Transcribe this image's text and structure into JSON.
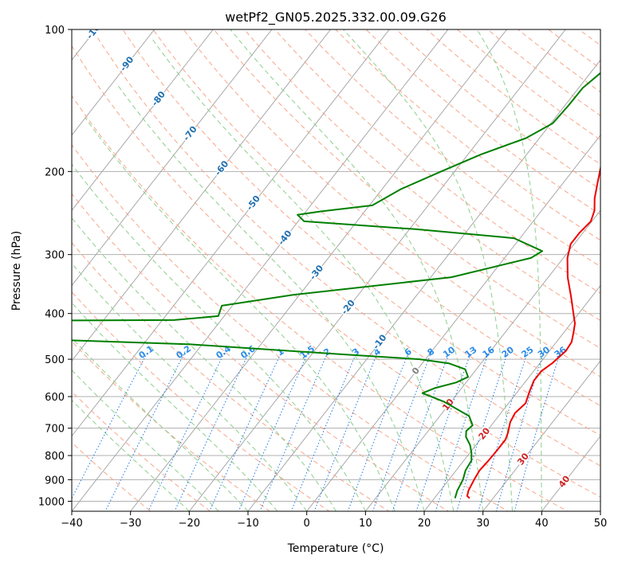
{
  "chart_data": {
    "type": "line",
    "subtype": "skew-t log-p",
    "title": "wetPf2_GN05.2025.332.00.09.G26",
    "xlabel": "Temperature (°C)",
    "ylabel": "Pressure (hPa)",
    "xlim": [
      -40,
      50
    ],
    "ylim": [
      1050,
      100
    ],
    "x_ticks": [
      -40,
      -30,
      -20,
      -10,
      0,
      10,
      20,
      30,
      40,
      50
    ],
    "y_ticks": [
      1000,
      900,
      800,
      700,
      600,
      500,
      400,
      300,
      200,
      100
    ],
    "x_tick_labels": [
      "−40",
      "−30",
      "−20",
      "−10",
      "0",
      "10",
      "20",
      "30",
      "40",
      "50"
    ],
    "y_tick_labels": [
      "1000",
      "900",
      "800",
      "700",
      "600",
      "500",
      "400",
      "300",
      "200",
      "100"
    ],
    "colors": {
      "temperature": "#ee0000",
      "dewpoint": "#007f00",
      "isotherm": "#a0a0a0",
      "dry_adiabat": "#f7a68a",
      "moist_adiabat": "#8ccf8c",
      "mixing_ratio": "#1f77e4",
      "grid": "#b0b0b0",
      "isotherm_label_neg": "#1f6fb0",
      "isotherm_label_pos": "#cc2222",
      "isotherm_label_zero": "#808080",
      "mixing_label": "#2b8ce8"
    },
    "series": [
      {
        "name": "Temperature",
        "points": [
          [
            26.0,
            985
          ],
          [
            25.3,
            975
          ],
          [
            24.8,
            950
          ],
          [
            24.3,
            900
          ],
          [
            24.0,
            860
          ],
          [
            24.2,
            820
          ],
          [
            24.3,
            780
          ],
          [
            24.3,
            740
          ],
          [
            23.8,
            715
          ],
          [
            22.8,
            680
          ],
          [
            22.4,
            650
          ],
          [
            22.9,
            620
          ],
          [
            22.0,
            585
          ],
          [
            21.3,
            555
          ],
          [
            21.3,
            530
          ],
          [
            22.1,
            510
          ],
          [
            22.8,
            480
          ],
          [
            22.6,
            460
          ],
          [
            21.7,
            440
          ],
          [
            20.7,
            420
          ],
          [
            19.1,
            400
          ],
          [
            16.6,
            370
          ],
          [
            13.3,
            335
          ],
          [
            10.7,
            305
          ],
          [
            9.4,
            285
          ],
          [
            9.4,
            270
          ],
          [
            9.8,
            255
          ],
          [
            9.0,
            242
          ],
          [
            7.4,
            228
          ],
          [
            5.7,
            210
          ],
          [
            3.7,
            190
          ],
          [
            2.3,
            175
          ],
          [
            2.0,
            160
          ],
          [
            2.0,
            145
          ],
          [
            0.8,
            130
          ],
          [
            -1.0,
            118
          ],
          [
            -1.4,
            112
          ],
          [
            -0.4,
            106
          ],
          [
            0.0,
            100
          ]
        ]
      },
      {
        "name": "Dewpoint",
        "points": [
          [
            23.5,
            985
          ],
          [
            22.9,
            950
          ],
          [
            22.4,
            900
          ],
          [
            21.6,
            860
          ],
          [
            21.3,
            820
          ],
          [
            20.3,
            790
          ],
          [
            19.0,
            760
          ],
          [
            17.2,
            730
          ],
          [
            16.5,
            710
          ],
          [
            16.8,
            690
          ],
          [
            15.0,
            660
          ],
          [
            8.8,
            615
          ],
          [
            4.0,
            590
          ],
          [
            5.5,
            575
          ],
          [
            8.3,
            560
          ],
          [
            9.6,
            545
          ],
          [
            8.1,
            525
          ],
          [
            4.5,
            510
          ],
          [
            -1.0,
            500
          ],
          [
            -15.0,
            488
          ],
          [
            -42.0,
            465
          ],
          [
            -100.0,
            440
          ],
          [
            -150.0,
            430
          ],
          [
            -200.0,
            420
          ],
          [
            -48.0,
            413
          ],
          [
            -41.0,
            405
          ],
          [
            -41.8,
            385
          ],
          [
            -31.0,
            365
          ],
          [
            -6.5,
            335
          ],
          [
            4.5,
            305
          ],
          [
            5.5,
            295
          ],
          [
            -1.0,
            277
          ],
          [
            -19.0,
            265
          ],
          [
            -39.0,
            255
          ],
          [
            -41.0,
            247
          ],
          [
            -37.5,
            243
          ],
          [
            -29.5,
            236
          ],
          [
            -26.8,
            218
          ],
          [
            -22.3,
            200
          ],
          [
            -17.8,
            184
          ],
          [
            -12.3,
            170
          ],
          [
            -9.7,
            158
          ],
          [
            -9.4,
            145
          ],
          [
            -9.3,
            133
          ],
          [
            -8.3,
            124
          ],
          [
            -6.3,
            117
          ],
          [
            -4.3,
            111
          ],
          [
            -2.3,
            106
          ],
          [
            -0.9,
            100
          ]
        ]
      }
    ],
    "isotherm_labels": [
      {
        "t": -100,
        "text": "-100"
      },
      {
        "t": -90,
        "text": "-90"
      },
      {
        "t": -80,
        "text": "-80"
      },
      {
        "t": -70,
        "text": "-70"
      },
      {
        "t": -60,
        "text": "-60"
      },
      {
        "t": -50,
        "text": "-50"
      },
      {
        "t": -40,
        "text": "-40"
      },
      {
        "t": -30,
        "text": "-30"
      },
      {
        "t": -20,
        "text": "-20"
      },
      {
        "t": -10,
        "text": "-10"
      },
      {
        "t": 0,
        "text": "0"
      },
      {
        "t": 10,
        "text": "10"
      },
      {
        "t": 20,
        "text": "20"
      },
      {
        "t": 30,
        "text": "30"
      },
      {
        "t": 40,
        "text": "40"
      }
    ],
    "mixing_ratio_labels": [
      "0.1",
      "0.2",
      "0.4",
      "0.6",
      "1",
      "1.5",
      "2",
      "3",
      "4",
      "6",
      "8",
      "10",
      "13",
      "16",
      "20",
      "25",
      "30",
      "36"
    ]
  }
}
